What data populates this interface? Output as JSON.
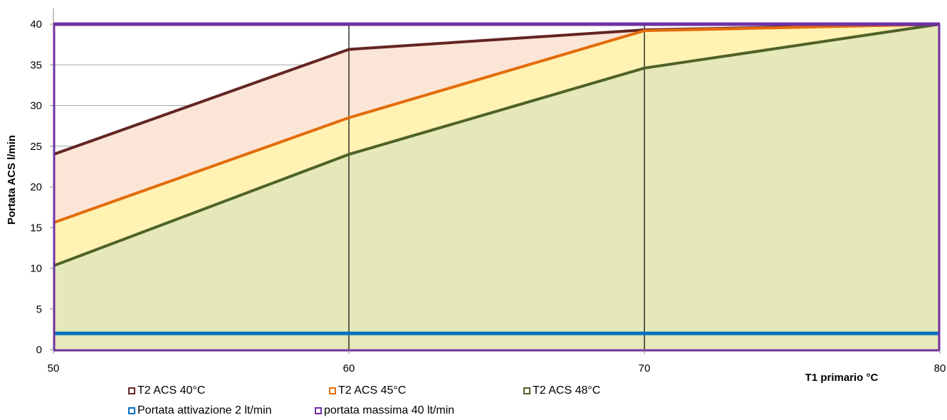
{
  "chart_data": {
    "type": "area",
    "xlabel": "T1 primario °C",
    "ylabel": "Portata ACS l/min",
    "x": [
      50,
      60,
      70,
      80
    ],
    "xlim": [
      50,
      80
    ],
    "ylim": [
      0,
      40
    ],
    "x_ticks": [
      "50",
      "60",
      "70",
      "80"
    ],
    "y_ticks": [
      "0",
      "5",
      "10",
      "15",
      "20",
      "25",
      "30",
      "35",
      "40"
    ],
    "grid": true,
    "legend_placement": "bottom",
    "series": [
      {
        "name": "T2 ACS 40°C",
        "values": [
          24,
          36.9,
          39.3,
          40
        ],
        "color": "#632523",
        "fill": "#fbe5d6"
      },
      {
        "name": "T2 ACS 45°C",
        "values": [
          15.6,
          28.5,
          39.2,
          40
        ],
        "color": "#e36c0a",
        "fill": "#fff2b3"
      },
      {
        "name": "T2 ACS 48°C",
        "values": [
          10.3,
          24,
          34.6,
          40
        ],
        "color": "#4f6228",
        "fill": "#e5e8b9"
      },
      {
        "name": "Portata attivazione 2 lt/min",
        "values": [
          2,
          2,
          2,
          2
        ],
        "color": "#0070c0"
      },
      {
        "name": "portata massima 40 lt/min",
        "values": [
          40,
          40,
          40,
          40
        ],
        "color": "#7030a0"
      }
    ]
  }
}
